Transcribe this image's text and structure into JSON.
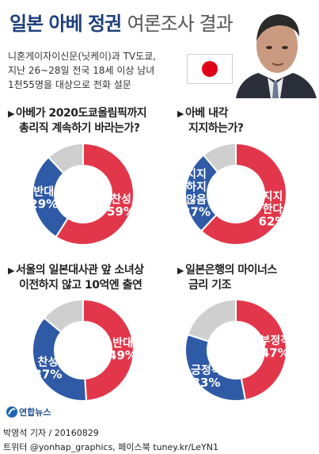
{
  "header": {
    "title_main": "일본 아베 정권",
    "title_sub": "여론조사 결과",
    "source_lines": [
      "니혼게이자이신문(닛케이)과 TV도쿄,",
      "지난 26~28일 전국 18세 이상 남녀",
      "1천55명을 대상으로 전화 설문"
    ]
  },
  "colors": {
    "red": "#e2374b",
    "blue": "#2f5aa6",
    "gray": "#cfcfcf",
    "title": "#1f3f7a",
    "flag_red": "#e0001a"
  },
  "chart_data": [
    {
      "type": "pie",
      "title_lines": [
        "아베가 2020도쿄올림픽까지",
        "총리직 계속하기 바라는가?"
      ],
      "slices": [
        {
          "label": "찬성",
          "value": 59,
          "value_label": "59%",
          "color": "#e2374b"
        },
        {
          "label": "반대",
          "value": 29,
          "value_label": "29%",
          "color": "#2f5aa6"
        },
        {
          "label": "",
          "value": 12,
          "value_label": "",
          "color": "#cfcfcf"
        }
      ]
    },
    {
      "type": "pie",
      "title_lines": [
        "아베 내각",
        "지지하는가?"
      ],
      "slices": [
        {
          "label": "지지 한다",
          "value": 62,
          "value_label": "62%",
          "color": "#e2374b"
        },
        {
          "label": "지지 하지 않음",
          "value": 27,
          "value_label": "27%",
          "color": "#2f5aa6"
        },
        {
          "label": "",
          "value": 11,
          "value_label": "",
          "color": "#cfcfcf"
        }
      ]
    },
    {
      "type": "pie",
      "title_lines": [
        "서울의 일본대사관 앞 소녀상",
        "이전하지 않고 10억엔 출연"
      ],
      "slices": [
        {
          "label": "반대",
          "value": 49,
          "value_label": "49%",
          "color": "#e2374b"
        },
        {
          "label": "찬성",
          "value": 37,
          "value_label": "37%",
          "color": "#2f5aa6"
        },
        {
          "label": "",
          "value": 14,
          "value_label": "",
          "color": "#cfcfcf"
        }
      ]
    },
    {
      "type": "pie",
      "title_lines": [
        "일본은행의 마이너스",
        "금리 기조"
      ],
      "slices": [
        {
          "label": "부정적",
          "value": 47,
          "value_label": "47%",
          "color": "#e2374b"
        },
        {
          "label": "긍정적",
          "value": 33,
          "value_label": "33%",
          "color": "#2f5aa6"
        },
        {
          "label": "",
          "value": 20,
          "value_label": "",
          "color": "#cfcfcf"
        }
      ]
    }
  ],
  "footer": {
    "logo_text": "연합뉴스",
    "byline": "박영석 기자 / 20160829",
    "social": "트위터 @yonhap_graphics, 페이스북 tuney.kr/LeYN1"
  }
}
